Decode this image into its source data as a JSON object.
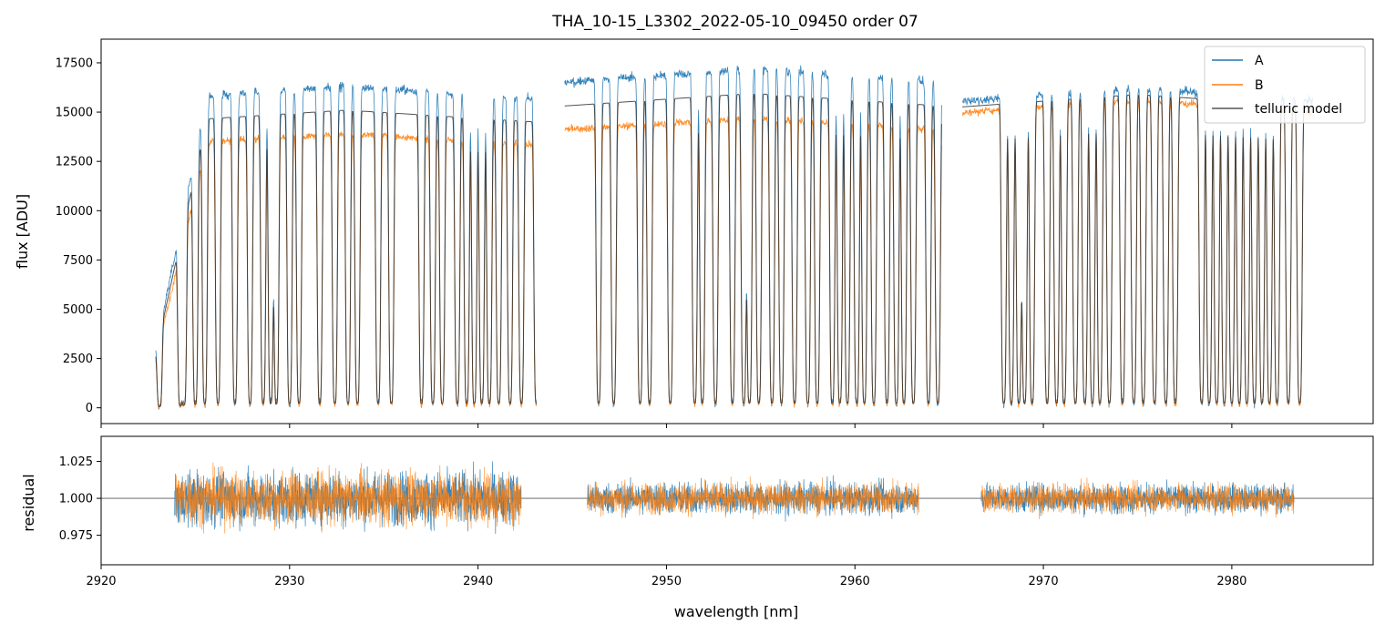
{
  "colors": {
    "series_a": "#1f77b4",
    "series_b": "#ff7f0e",
    "model": "#333333",
    "axis": "#000000",
    "legend_border": "#cccccc",
    "ref_line": "#555555"
  },
  "chart_data": [
    {
      "type": "line",
      "panel": "top",
      "title": "THA_10-15_L3302_2022-05-10_09450  order 07",
      "xlabel": "",
      "ylabel": "flux [ADU]",
      "xlim": [
        2920,
        2987.5
      ],
      "ylim": [
        -800,
        18700
      ],
      "yticks": [
        0,
        2500,
        5000,
        7500,
        10000,
        12500,
        15000,
        17500
      ],
      "yticklabels": [
        "0",
        "2500",
        "5000",
        "7500",
        "10000",
        "12500",
        "15000",
        "17500"
      ],
      "legend": {
        "position": "top-right",
        "entries": [
          "A",
          "B",
          "telluric model"
        ]
      },
      "segments": [
        {
          "start": 2922.9,
          "end": 2943.1,
          "continuum_A": 16300,
          "continuum_B": 13900,
          "onset": 2925.6
        },
        {
          "start": 2944.6,
          "end": 2964.6,
          "continuum_A": 17200,
          "continuum_B": 14700,
          "onset": 2944.6
        },
        {
          "start": 2965.7,
          "end": 2984.3,
          "continuum_A": 16200,
          "continuum_B": 15600,
          "onset": 2965.7
        }
      ],
      "series": [
        {
          "name": "A",
          "description": "observed spectrum A"
        },
        {
          "name": "B",
          "description": "observed spectrum B"
        },
        {
          "name": "telluric model"
        }
      ],
      "absorption_lines": [
        2923.1,
        2924.2,
        2924.4,
        2925.0,
        2925.5,
        2926.2,
        2927.1,
        2927.9,
        2928.6,
        2929.0,
        2929.3,
        2930.0,
        2930.5,
        2931.6,
        2932.4,
        2933.1,
        2933.6,
        2934.7,
        2935.4,
        2937.0,
        2937.6,
        2938.1,
        2938.9,
        2939.4,
        2939.8,
        2940.2,
        2940.6,
        2941.1,
        2941.7,
        2942.3,
        2943.1,
        2946.4,
        2947.2,
        2948.6,
        2949.1,
        2950.2,
        2951.5,
        2951.9,
        2952.6,
        2953.5,
        2954.1,
        2954.4,
        2954.9,
        2955.6,
        2956.1,
        2956.8,
        2957.5,
        2958.0,
        2958.8,
        2959.2,
        2959.6,
        2960.1,
        2960.5,
        2961.0,
        2961.7,
        2962.2,
        2962.6,
        2963.1,
        2963.9,
        2964.4,
        2967.9,
        2968.3,
        2968.7,
        2969.0,
        2969.4,
        2970.2,
        2970.7,
        2971.1,
        2971.7,
        2972.2,
        2972.6,
        2973.0,
        2973.5,
        2974.2,
        2974.8,
        2975.3,
        2975.9,
        2976.5,
        2977.0,
        2978.4,
        2978.8,
        2979.2,
        2979.6,
        2980.0,
        2980.4,
        2980.8,
        2981.2,
        2981.6,
        2982.0,
        2982.4,
        2983.0,
        2983.6
      ]
    },
    {
      "type": "line",
      "panel": "bottom",
      "title": "",
      "xlabel": "wavelength [nm]",
      "ylabel": "residual",
      "xlim": [
        2920,
        2987.5
      ],
      "ylim": [
        0.955,
        1.042
      ],
      "xticks": [
        2920,
        2930,
        2940,
        2950,
        2960,
        2970,
        2980
      ],
      "xticklabels": [
        "2920",
        "2930",
        "2940",
        "2950",
        "2960",
        "2970",
        "2980"
      ],
      "yticks": [
        0.975,
        1.0,
        1.025
      ],
      "yticklabels": [
        "0.975",
        "1.000",
        "1.025"
      ],
      "reference_line": 1.0,
      "segments": [
        {
          "start": 2923.9,
          "end": 2942.3,
          "noise": 0.017
        },
        {
          "start": 2945.8,
          "end": 2963.4,
          "noise": 0.01
        },
        {
          "start": 2966.7,
          "end": 2983.3,
          "noise": 0.009
        }
      ],
      "series": [
        {
          "name": "A"
        },
        {
          "name": "B"
        }
      ]
    }
  ]
}
